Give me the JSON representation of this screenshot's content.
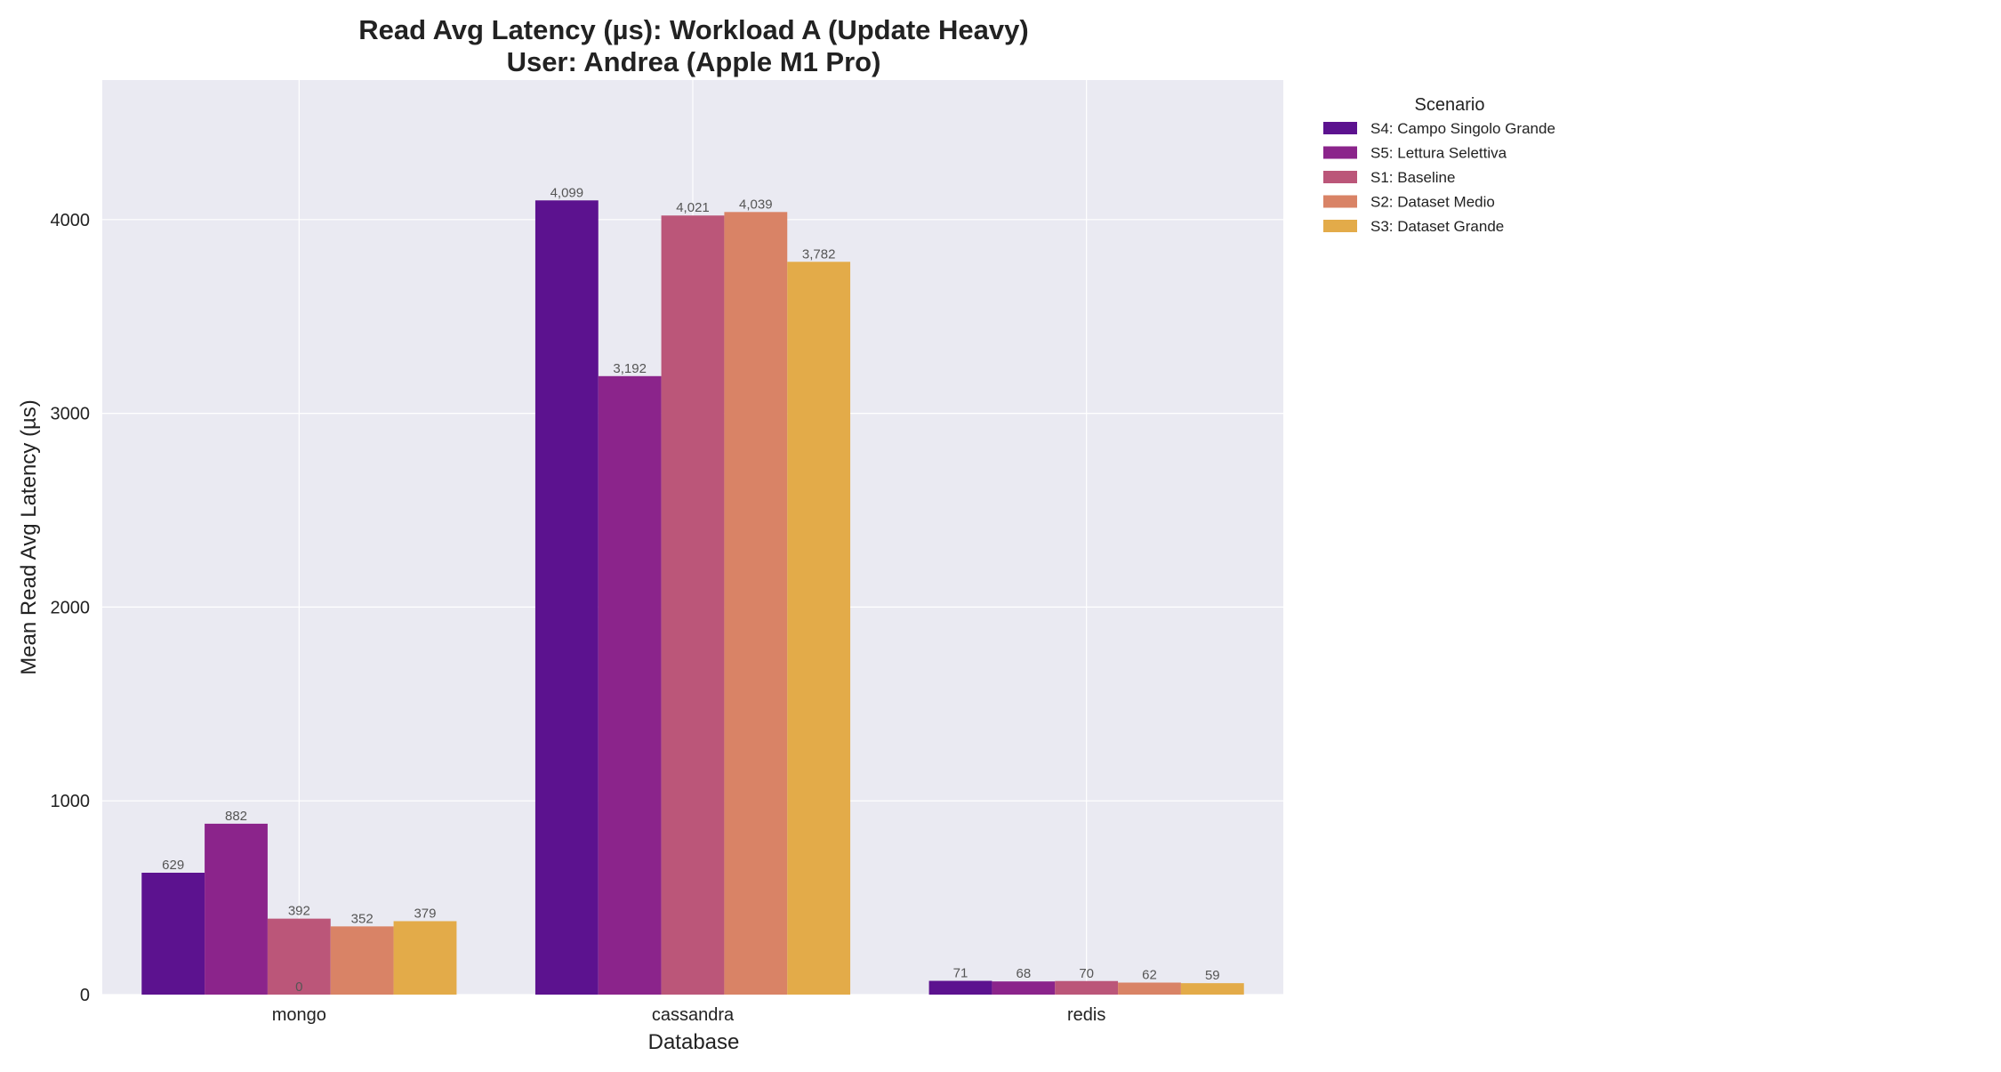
{
  "chart_data": {
    "type": "bar",
    "title": "Read Avg Latency (µs): Workload A (Update Heavy)",
    "subtitle": "User: Andrea (Apple M1 Pro)",
    "xlabel": "Database",
    "ylabel": "Mean Read Avg Latency (µs)",
    "categories": [
      "mongo",
      "cassandra",
      "redis"
    ],
    "ylim": [
      0,
      4720
    ],
    "yticks": [
      0,
      1000,
      2000,
      3000,
      4000
    ],
    "grid": true,
    "legend": {
      "title": "Scenario",
      "placement": "outside-top-right"
    },
    "series": [
      {
        "name": "S4: Campo Singolo Grande",
        "color": "#5c128f",
        "values": [
          629,
          4099,
          71
        ],
        "labels": [
          "629",
          "4,099",
          "71"
        ]
      },
      {
        "name": "S5: Lettura Selettiva",
        "color": "#8b248b",
        "values": [
          882,
          3192,
          68
        ],
        "labels": [
          "882",
          "3,192",
          "68"
        ]
      },
      {
        "name": "S1: Baseline",
        "color": "#bb5679",
        "values": [
          392,
          4021,
          70
        ],
        "labels": [
          "392",
          "4,021",
          "70"
        ]
      },
      {
        "name": "S2: Dataset Medio",
        "color": "#d98366",
        "values": [
          352,
          4039,
          62
        ],
        "labels": [
          "352",
          "4,039",
          "62"
        ]
      },
      {
        "name": "S3: Dataset Grande",
        "color": "#e3ab49",
        "values": [
          379,
          3782,
          59
        ],
        "labels": [
          "379",
          "3,782",
          "59"
        ]
      }
    ],
    "annotations": [
      {
        "text": "0",
        "category": "mongo",
        "y": 0
      }
    ]
  }
}
